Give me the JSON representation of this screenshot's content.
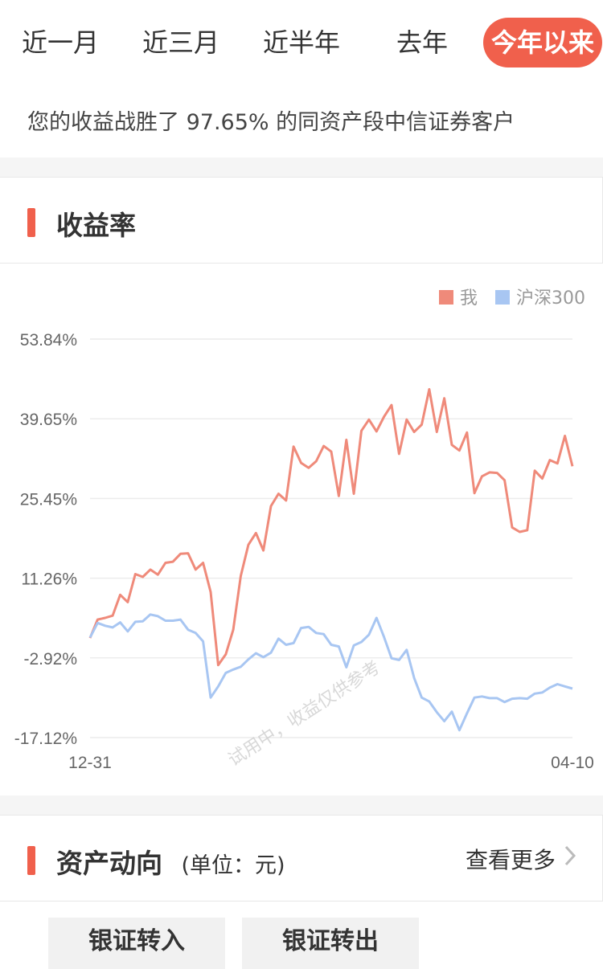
{
  "period_tabs": [
    {
      "label": "近一月",
      "active": false
    },
    {
      "label": "近三月",
      "active": false
    },
    {
      "label": "近半年",
      "active": false
    },
    {
      "label": "去年",
      "active": false
    },
    {
      "label": "今年以来",
      "active": true
    }
  ],
  "beat_text": "您的收益战胜了 97.65% 的同资产段中信证券客户",
  "returns_card": {
    "title": "收益率"
  },
  "chart_data": {
    "type": "line",
    "x_start": "12-31",
    "x_end": "04-10",
    "yticks": [
      "53.84%",
      "39.65%",
      "25.45%",
      "11.26%",
      "-2.92%",
      "-17.12%"
    ],
    "ylim": [
      -17.12,
      53.84
    ],
    "legend_position": "top-right",
    "grid": true,
    "watermark": "试用中，收益仅供参考",
    "colors": {
      "me": "#ef8a7a",
      "index": "#a8c6f2"
    },
    "series": [
      {
        "name": "我",
        "color": "#ef8a7a",
        "values": [
          0.6,
          3.9,
          4.2,
          4.6,
          8.3,
          7.0,
          12.0,
          11.5,
          12.8,
          11.9,
          14.0,
          14.2,
          15.6,
          15.7,
          12.8,
          14.0,
          8.8,
          -4.2,
          -2.3,
          2.1,
          11.7,
          17.2,
          19.3,
          16.2,
          24.1,
          26.3,
          25.1,
          34.7,
          31.8,
          30.9,
          32.1,
          34.8,
          33.8,
          25.9,
          35.9,
          26.3,
          37.5,
          39.5,
          37.4,
          40.0,
          42.1,
          33.4,
          39.5,
          37.3,
          38.6,
          44.9,
          37.3,
          43.3,
          35.0,
          34.0,
          37.2,
          26.4,
          29.4,
          30.1,
          30.0,
          28.7,
          20.3,
          19.5,
          19.8,
          30.4,
          29.0,
          32.3,
          31.7,
          36.6,
          31.2
        ]
      },
      {
        "name": "沪深300",
        "color": "#a8c6f2",
        "values": [
          0.7,
          3.3,
          2.8,
          2.5,
          3.4,
          1.8,
          3.5,
          3.6,
          4.8,
          4.5,
          3.7,
          3.7,
          3.9,
          2.1,
          1.5,
          0.0,
          -10.0,
          -8.0,
          -5.6,
          -5.0,
          -4.5,
          -3.2,
          -2.1,
          -2.8,
          -2.0,
          0.5,
          -0.6,
          -0.3,
          2.4,
          2.6,
          1.5,
          1.3,
          -0.6,
          -0.9,
          -4.6,
          -0.7,
          -0.1,
          1.2,
          4.2,
          0.8,
          -3.0,
          -3.3,
          -1.5,
          -6.5,
          -10.0,
          -10.7,
          -12.6,
          -14.2,
          -12.5,
          -15.8,
          -12.8,
          -10.0,
          -9.8,
          -10.1,
          -10.1,
          -10.8,
          -10.2,
          -10.1,
          -10.2,
          -9.3,
          -9.1,
          -8.2,
          -7.6,
          -8.0,
          -8.4
        ]
      }
    ]
  },
  "assets_card": {
    "title": "资产动向",
    "unit": "(单位：元)",
    "more_label": "查看更多"
  },
  "actions": {
    "transfer_in": "银证转入",
    "transfer_out": "银证转出"
  }
}
